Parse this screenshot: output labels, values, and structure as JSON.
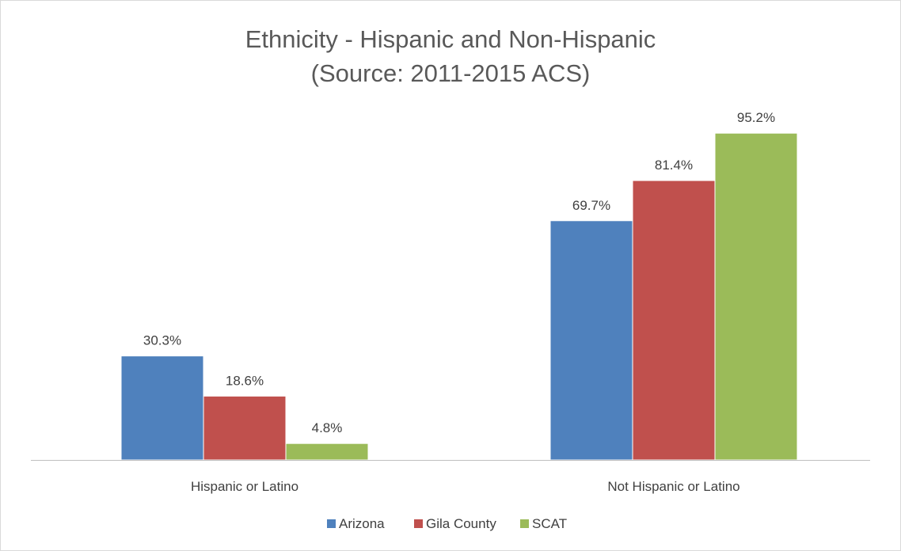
{
  "chart_data": {
    "type": "bar",
    "title": "Ethnicity - Hispanic and Non-Hispanic",
    "subtitle": "(Source: 2011-2015 ACS)",
    "categories": [
      "Hispanic or Latino",
      "Not Hispanic or Latino"
    ],
    "series": [
      {
        "name": "Arizona",
        "values": [
          30.3,
          69.7
        ],
        "labels": [
          "30.3%",
          "69.7%"
        ],
        "color": "#4f81bd"
      },
      {
        "name": "Gila County",
        "values": [
          18.6,
          81.4
        ],
        "labels": [
          "18.6%",
          "81.4%"
        ],
        "color": "#c0504d"
      },
      {
        "name": "SCAT",
        "values": [
          4.8,
          95.2
        ],
        "labels": [
          "4.8%",
          "95.2%"
        ],
        "color": "#9bbb59"
      }
    ],
    "xlabel": "",
    "ylabel": "",
    "ylim": [
      0,
      100
    ],
    "grid": false,
    "legend_position": "bottom",
    "axis_color": "#bfbfbf"
  }
}
